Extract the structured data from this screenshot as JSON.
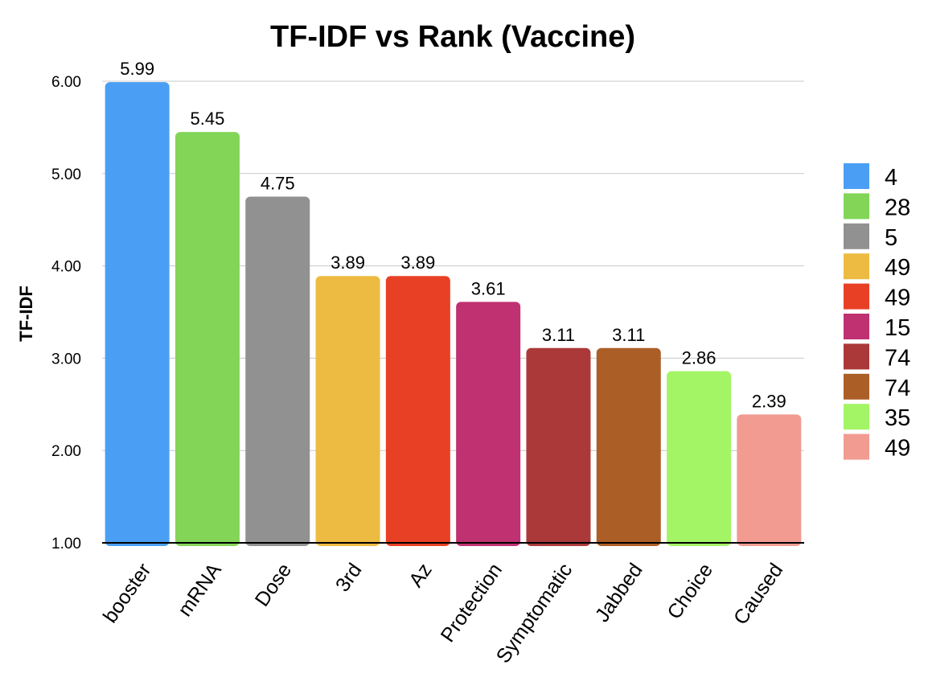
{
  "chart_data": {
    "type": "bar",
    "title": "TF-IDF vs Rank (Vaccine)",
    "xlabel": "",
    "ylabel": "TF-IDF",
    "ylim": [
      1,
      6
    ],
    "yticks": [
      "1.00",
      "2.00",
      "3.00",
      "4.00",
      "5.00",
      "6.00"
    ],
    "grid": true,
    "legend_position": "right",
    "categories": [
      "booster",
      "mRNA",
      "Dose",
      "3rd",
      "Az",
      "Protection",
      "Symptomatic",
      "Jabbed",
      "Choice",
      "Caused"
    ],
    "values": [
      5.99,
      5.45,
      4.75,
      3.89,
      3.89,
      3.61,
      3.11,
      3.11,
      2.86,
      2.39
    ],
    "value_labels": [
      "5.99",
      "5.45",
      "4.75",
      "3.89",
      "3.89",
      "3.61",
      "3.11",
      "3.11",
      "2.86",
      "2.39"
    ],
    "legend": [
      "4",
      "28",
      "5",
      "49",
      "49",
      "15",
      "74",
      "74",
      "35",
      "49"
    ],
    "colors": [
      "#4a9ff5",
      "#82d557",
      "#919191",
      "#edbb42",
      "#e84025",
      "#c03171",
      "#ab3939",
      "#ac5e27",
      "#a3f566",
      "#f19b91"
    ]
  }
}
